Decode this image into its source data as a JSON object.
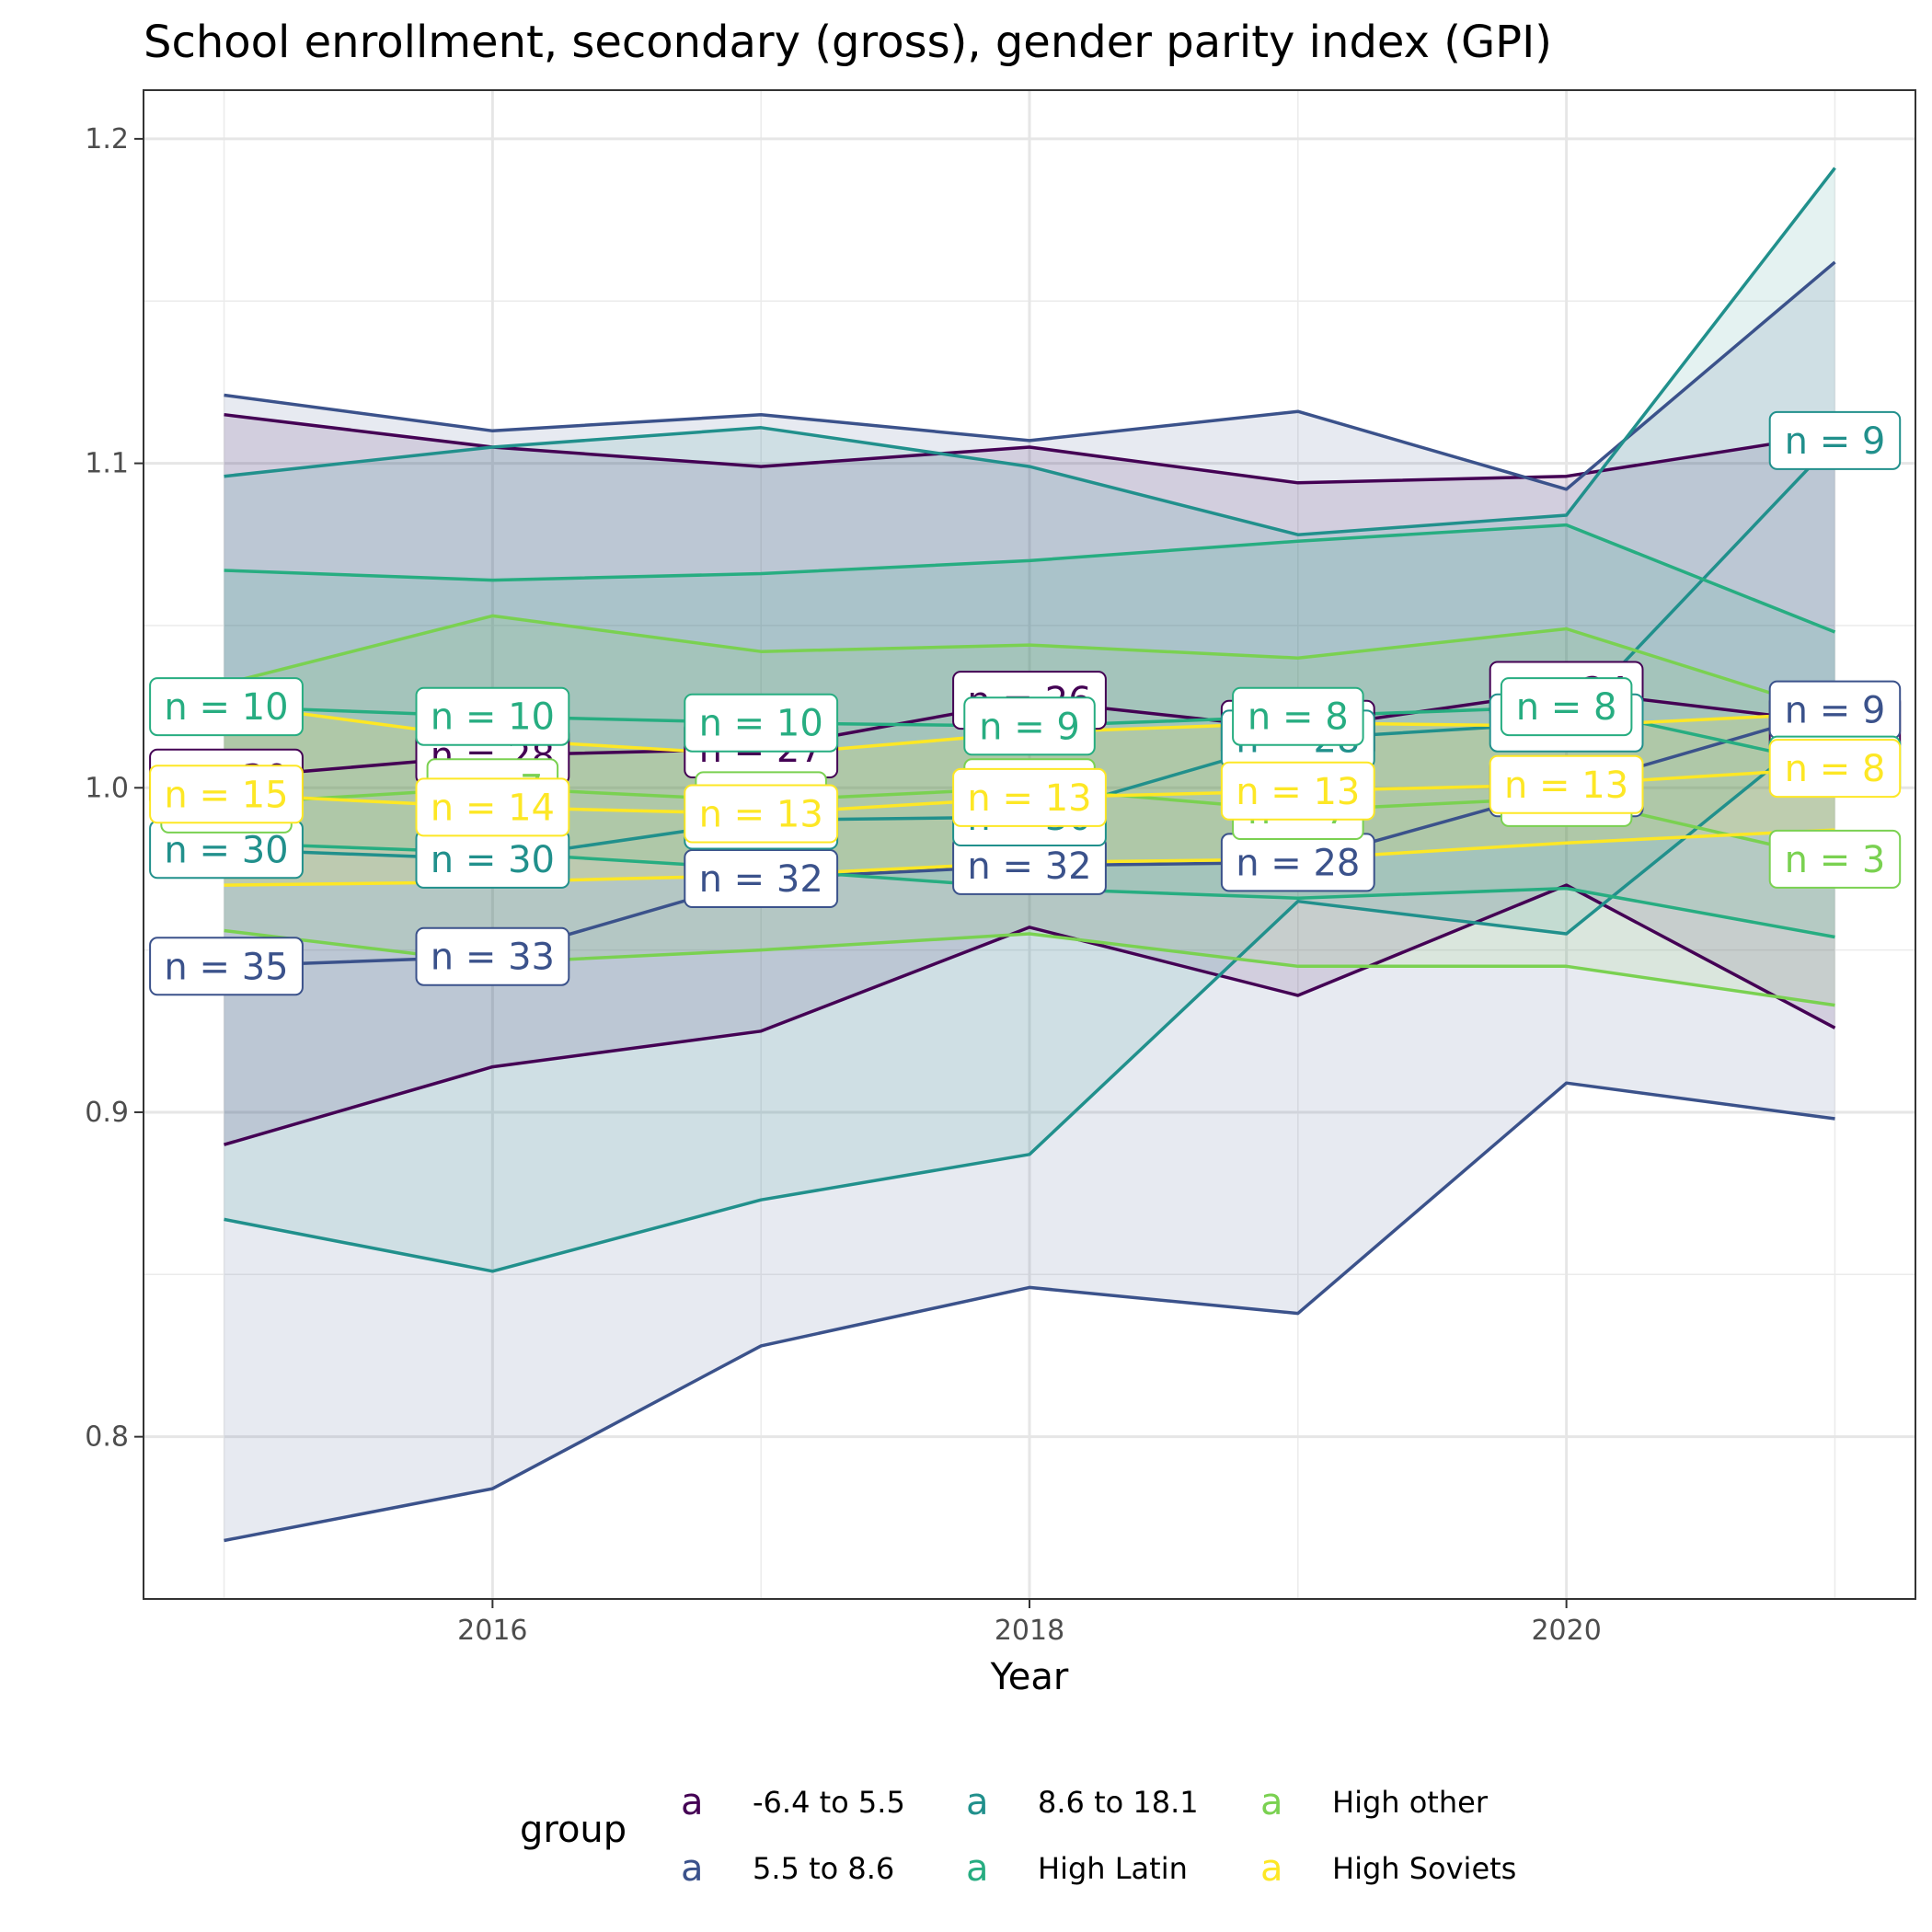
{
  "chart_data": {
    "type": "line",
    "title": "School enrollment, secondary (gross), gender parity index (GPI)",
    "xlabel": "Year",
    "ylabel": "",
    "x": [
      2015,
      2016,
      2017,
      2018,
      2019,
      2020,
      2021
    ],
    "xlim": [
      2014.7,
      2021.3
    ],
    "ylim": [
      0.75,
      1.215
    ],
    "x_ticks": [
      "2016",
      "2018",
      "2020"
    ],
    "y_ticks": [
      "0.8",
      "0.9",
      "1.0",
      "1.1",
      "1.2"
    ],
    "grid": true,
    "legend": {
      "title": "group",
      "position": "bottom",
      "key_glyph": "a"
    },
    "series": [
      {
        "name": "-6.4 to 5.5",
        "color": "#440154",
        "mean": [
          1.003,
          1.01,
          1.012,
          1.027,
          1.018,
          1.03,
          1.02
        ],
        "upper": [
          1.115,
          1.105,
          1.099,
          1.105,
          1.094,
          1.096,
          1.109
        ],
        "lower": [
          0.89,
          0.914,
          0.925,
          0.957,
          0.936,
          0.97,
          0.926
        ],
        "n_labels": [
          "n = 30",
          "n = 28",
          "n = 27",
          "n = 26",
          "n = 26",
          "n = 24",
          "n = 9"
        ]
      },
      {
        "name": "5.5 to 8.6",
        "color": "#3b528b",
        "mean": [
          0.945,
          0.948,
          0.972,
          0.976,
          0.977,
          1.0,
          1.024
        ],
        "upper": [
          1.121,
          1.11,
          1.115,
          1.107,
          1.116,
          1.092,
          1.162
        ],
        "lower": [
          0.768,
          0.784,
          0.828,
          0.846,
          0.838,
          0.909,
          0.898
        ],
        "n_labels": [
          "n = 35",
          "n = 33",
          "n = 32",
          "n = 32",
          "n = 28",
          "n = 28",
          "n = 9"
        ]
      },
      {
        "name": "8.6 to 18.1",
        "color": "#21908c",
        "mean": [
          0.981,
          0.978,
          0.99,
          0.991,
          1.015,
          1.02,
          1.107
        ],
        "upper": [
          1.096,
          1.105,
          1.111,
          1.099,
          1.078,
          1.084,
          1.191
        ],
        "lower": [
          0.867,
          0.851,
          0.873,
          0.887,
          0.965,
          0.955,
          1.022
        ],
        "n_labels": [
          "n = 30",
          "n = 30",
          "n = 30",
          "n = 30",
          "n = 28",
          "n = 15",
          "n = 9"
        ]
      },
      {
        "name": "High Latin",
        "color": "#27ad81",
        "mean": [
          1.025,
          1.022,
          1.02,
          1.019,
          1.022,
          1.025,
          1.007
        ],
        "upper": [
          1.067,
          1.064,
          1.066,
          1.07,
          1.076,
          1.081,
          1.048
        ],
        "lower": [
          0.983,
          0.98,
          0.975,
          0.969,
          0.966,
          0.969,
          0.954
        ],
        "n_labels": [
          "n = 10",
          "n = 10",
          "n = 10",
          "n = 9",
          "n = 8",
          "n = 8",
          "n = 8"
        ]
      },
      {
        "name": "High other",
        "color": "#7ad151",
        "mean": [
          0.995,
          1.0,
          0.996,
          1.0,
          0.993,
          0.997,
          0.978
        ],
        "upper": [
          1.032,
          1.053,
          1.042,
          1.044,
          1.04,
          1.049,
          1.023
        ],
        "lower": [
          0.956,
          0.946,
          0.95,
          0.955,
          0.945,
          0.945,
          0.933
        ],
        "n_labels": [
          "n = 8",
          "n = 7",
          "n = 9",
          "n = 8",
          "n = 7",
          "n = 7",
          "n = 3"
        ]
      },
      {
        "name": "High Soviets",
        "color": "#fde725",
        "mean": [
          0.998,
          0.994,
          0.992,
          0.997,
          0.999,
          1.001,
          1.006
        ],
        "upper": [
          1.026,
          1.015,
          1.01,
          1.017,
          1.02,
          1.019,
          1.023
        ],
        "lower": [
          0.97,
          0.971,
          0.973,
          0.977,
          0.978,
          0.983,
          0.987
        ],
        "n_labels": [
          "n = 15",
          "n = 14",
          "n = 13",
          "n = 13",
          "n = 13",
          "n = 13",
          "n = 8"
        ]
      }
    ]
  }
}
